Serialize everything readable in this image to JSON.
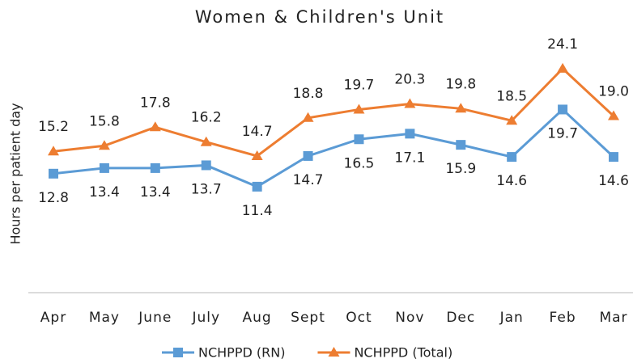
{
  "chart_data": {
    "type": "line",
    "title": "Women & Children's Unit",
    "y_label": "Hours per patient day",
    "categories": [
      "Apr",
      "May",
      "June",
      "July",
      "Aug",
      "Sept",
      "Oct",
      "Nov",
      "Dec",
      "Jan",
      "Feb",
      "Mar"
    ],
    "series": [
      {
        "name": "NCHPPD (RN)",
        "color": "#5b9bd5",
        "marker": "square",
        "label_side": "below",
        "values": [
          12.8,
          13.4,
          13.4,
          13.7,
          11.4,
          14.7,
          16.5,
          17.1,
          15.9,
          14.6,
          19.7,
          14.6
        ],
        "value_labels": [
          "12.8",
          "13.4",
          "13.4",
          "13.7",
          "11.4",
          "14.7",
          "16.5",
          "17.1",
          "15.9",
          "14.6",
          "19.7",
          "14.6"
        ]
      },
      {
        "name": "NCHPPD (Total)",
        "color": "#ed7d31",
        "marker": "triangle",
        "label_side": "above",
        "values": [
          15.2,
          15.8,
          17.8,
          16.2,
          14.7,
          18.8,
          19.7,
          20.3,
          19.8,
          18.5,
          24.1,
          19.0
        ],
        "value_labels": [
          "15.2",
          "15.8",
          "17.8",
          "16.2",
          "14.7",
          "18.8",
          "19.7",
          "20.3",
          "19.8",
          "18.5",
          "24.1",
          "19.0"
        ]
      }
    ],
    "ylim": [
      0,
      30
    ],
    "legend": "bottom"
  }
}
